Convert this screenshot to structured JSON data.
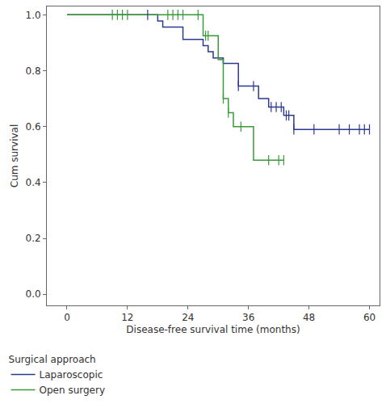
{
  "chart_data": {
    "type": "step",
    "x_label": "Disease-free survival time (months)",
    "y_label": "Cum survival",
    "legend_title": "Surgical approach",
    "legend": "below left",
    "grid": false,
    "xlim": [
      -4,
      62
    ],
    "xticks": [
      0,
      12,
      24,
      36,
      48,
      60
    ],
    "ylim": [
      -0.04,
      1.03
    ],
    "yticks": [
      {
        "value": 0,
        "label": "0.0"
      },
      {
        "value": 0.2,
        "label": "0.2"
      },
      {
        "value": 0.4,
        "label": "0.4"
      },
      {
        "value": 0.6,
        "label": "0.6"
      },
      {
        "value": 0.8,
        "label": "0.8"
      },
      {
        "value": 1,
        "label": "1.0"
      }
    ],
    "marker": "tick",
    "series": [
      {
        "name": "Laparoscopic",
        "color": "#2b3990",
        "x": [
          0,
          18,
          19,
          23,
          27,
          28,
          29,
          31,
          34,
          38,
          40,
          43,
          45,
          60
        ],
        "values": [
          1,
          0.978,
          0.956,
          0.912,
          0.89,
          0.868,
          0.846,
          0.826,
          0.745,
          0.7,
          0.67,
          0.64,
          0.59,
          0.59
        ],
        "censor_x": [
          16,
          34,
          37,
          40.5,
          41.5,
          42.5,
          43.5,
          44,
          45,
          49,
          54,
          56,
          58,
          59,
          60
        ],
        "censor_values": [
          1,
          0.745,
          0.745,
          0.67,
          0.67,
          0.67,
          0.64,
          0.64,
          0.59,
          0.59,
          0.59,
          0.59,
          0.59,
          0.59,
          0.59
        ]
      },
      {
        "name": "Open surgery",
        "color": "#3a9a3a",
        "x": [
          0,
          27,
          30,
          31,
          32,
          33,
          37,
          43
        ],
        "values": [
          1,
          0.925,
          0.84,
          0.7,
          0.65,
          0.6,
          0.48,
          0.48
        ],
        "censor_x": [
          9,
          10,
          11,
          12,
          20,
          21,
          22,
          23,
          26,
          27.5,
          28,
          31,
          32,
          34.5,
          40,
          42,
          43
        ],
        "censor_values": [
          1,
          1,
          1,
          1,
          1,
          1,
          1,
          1,
          1,
          0.925,
          0.925,
          0.7,
          0.65,
          0.6,
          0.48,
          0.48,
          0.48
        ]
      }
    ]
  }
}
